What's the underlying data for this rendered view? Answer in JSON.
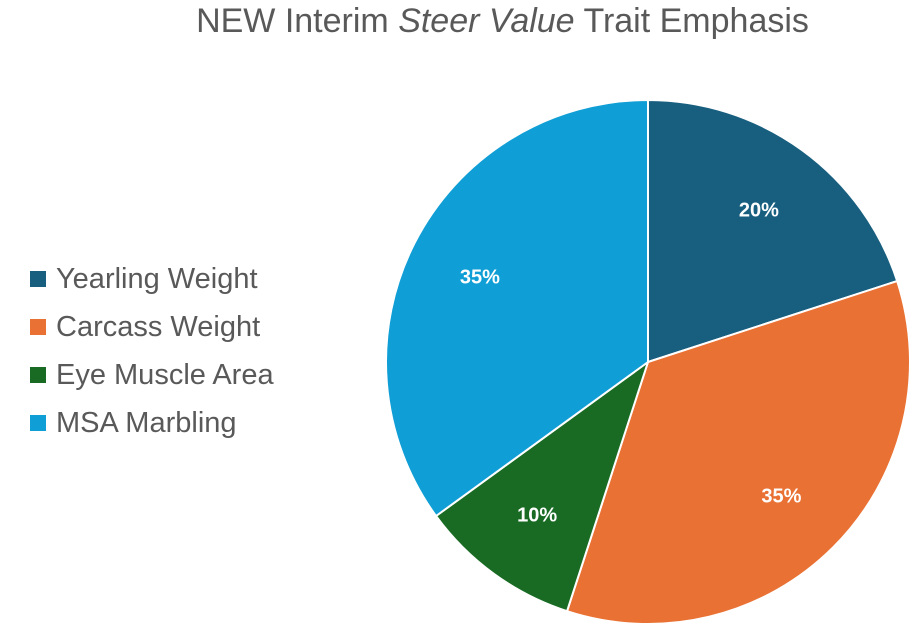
{
  "chart_data": {
    "type": "pie",
    "title_parts": {
      "prefix": "NEW Interim ",
      "emphasis": "Steer Value",
      "suffix": " Trait Emphasis"
    },
    "categories": [
      "Yearling Weight",
      "Carcass Weight",
      "Eye Muscle Area",
      "MSA Marbling"
    ],
    "values": [
      20,
      35,
      10,
      35
    ],
    "data_labels": [
      "20%",
      "35%",
      "10%",
      "35%"
    ],
    "colors": [
      "#175E7F",
      "#E97133",
      "#196B24",
      "#0F9ED5"
    ],
    "start_angle": "12 o'clock",
    "direction": "clockwise",
    "legend_position": "left"
  }
}
